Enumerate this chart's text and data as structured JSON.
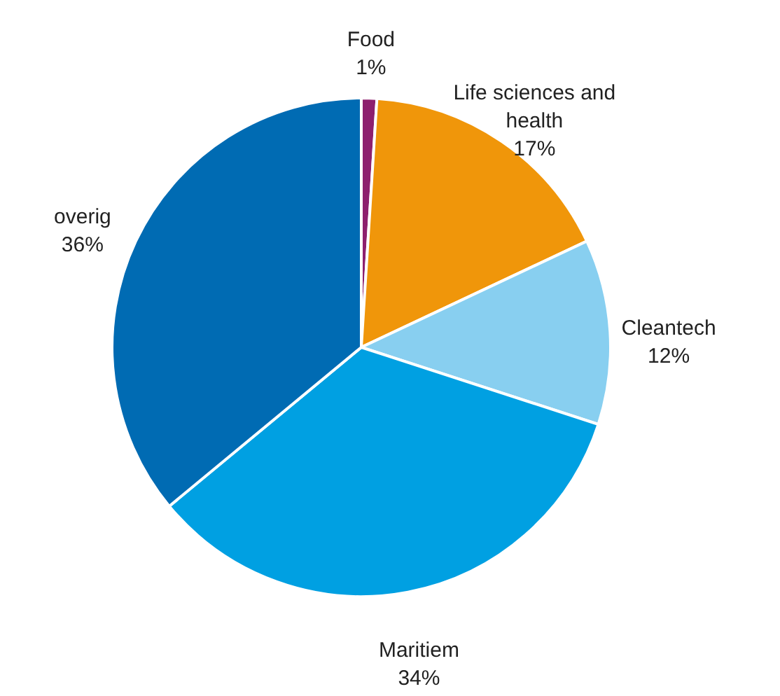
{
  "chart_data": {
    "type": "pie",
    "categories": [
      "Food",
      "Life sciences and health",
      "Cleantech",
      "Maritiem",
      "overig"
    ],
    "values": [
      1,
      17,
      12,
      34,
      36
    ],
    "value_labels": [
      "1%",
      "17%",
      "12%",
      "34%",
      "36%"
    ],
    "colors": [
      "#8e1f6e",
      "#f0960a",
      "#88cff0",
      "#00a0e2",
      "#006bb3"
    ]
  }
}
